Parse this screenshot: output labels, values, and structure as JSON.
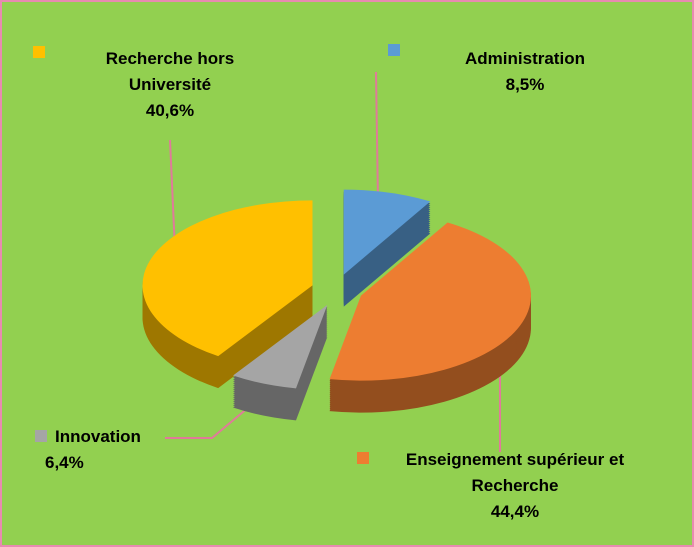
{
  "chart_data": {
    "type": "pie",
    "categories": [
      "Administration",
      "Enseignement supérieur et Recherche",
      "Innovation",
      "Recherche hors Université"
    ],
    "values": [
      8.5,
      44.4,
      6.4,
      40.6
    ],
    "value_labels": [
      "8,5%",
      "44,4%",
      "6,4%",
      "40,6%"
    ],
    "colors": [
      "#5b9bd5",
      "#ed7d31",
      "#a5a5a5",
      "#ffc000"
    ]
  }
}
